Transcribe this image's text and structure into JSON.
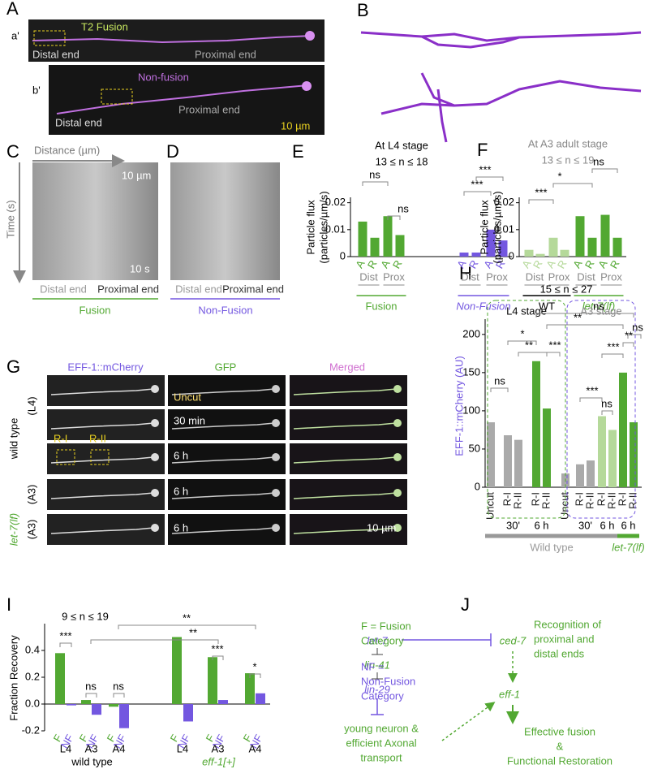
{
  "panel_labels": [
    "A",
    "B",
    "C",
    "D",
    "E",
    "F",
    "G",
    "H",
    "I",
    "J"
  ],
  "panel_a": {
    "sublabels": [
      "a'",
      "b'"
    ],
    "fusion_label": "T2 Fusion",
    "nonfusion_label": "Non-fusion",
    "ends": [
      "Distal end",
      "Proximal end"
    ],
    "scale": "10 µm"
  },
  "panel_c": {
    "x_axis": "Distance (µm)",
    "y_axis": "Time (s)",
    "scale_x": "10 µm",
    "scale_t": "10 s",
    "ends": [
      "Distal end",
      "Proximal end"
    ],
    "group": "Fusion"
  },
  "panel_d": {
    "ends": [
      "Distal end",
      "Proximal end"
    ],
    "group": "Non-Fusion"
  },
  "panel_g": {
    "columns": [
      "EFF-1::mCherry",
      "GFP",
      "Merged"
    ],
    "genotypes": [
      "wild type",
      "let-7(lf)"
    ],
    "stages": [
      "(L4)",
      "(A3)",
      "(A3)"
    ],
    "times": [
      "Uncut",
      "30 min",
      "6 h",
      "6 h",
      "6 h"
    ],
    "regions": [
      "R-I",
      "R-II"
    ],
    "scale": "10 µm"
  },
  "panel_j": {
    "let7": "let-7",
    "lin41": "lin-41",
    "lin29": "lin-29",
    "ced7": "ced-7",
    "eff1": "eff-1",
    "recognition": [
      "Recognition of",
      "proximal and",
      "distal ends"
    ],
    "young": [
      "young neuron &",
      "efficient Axonal",
      "transport"
    ],
    "outcome": [
      "Effective fusion",
      "&",
      "Functional Restoration"
    ]
  },
  "chart_data": [
    {
      "type": "bar",
      "title": "At L4 stage",
      "subtitle": "13 ≤ n ≤ 18",
      "y_label": [
        "Particle flux",
        "(particles/µm/s)"
      ],
      "categories": [
        "A",
        "R",
        "A",
        "R",
        "A",
        "R",
        "A",
        "R"
      ],
      "values": [
        0.013,
        0.007,
        0.015,
        0.008,
        0.0015,
        0.0015,
        0.01,
        0.006
      ],
      "colors": [
        "#52a832",
        "#52a832",
        "#52a832",
        "#52a832",
        "#7357e0",
        "#7357e0",
        "#7357e0",
        "#7357e0"
      ],
      "ylim": [
        0,
        0.022
      ],
      "yticks": [
        0,
        0.01,
        0.02
      ],
      "groups": [
        "Dist",
        "Prox",
        "Dist",
        "Prox"
      ],
      "sections": [
        "Fusion",
        "Non-Fusion"
      ],
      "section_colors": [
        "#52a832",
        "#7357e0"
      ],
      "annotations": [
        "ns",
        "ns",
        "***",
        "***"
      ]
    },
    {
      "type": "bar",
      "title": "At A3 adult stage",
      "subtitle": "13 ≤ n ≤ 19",
      "y_label": [
        "Particle flux",
        "(particles/µm/s)"
      ],
      "categories": [
        "A",
        "R",
        "A",
        "R",
        "A",
        "R",
        "A",
        "R"
      ],
      "values": [
        0.0025,
        0.001,
        0.007,
        0.0025,
        0.015,
        0.007,
        0.0155,
        0.007
      ],
      "colors": [
        "#b5d99a",
        "#b5d99a",
        "#b5d99a",
        "#b5d99a",
        "#52a832",
        "#52a832",
        "#52a832",
        "#52a832"
      ],
      "ylim": [
        0,
        0.022
      ],
      "yticks": [
        0,
        0.01,
        0.02
      ],
      "groups": [
        "Dist",
        "Prox",
        "Dist",
        "Prox"
      ],
      "sections": [
        "WT",
        "let-7(lf)"
      ],
      "section_colors": [
        "#000000",
        "#52a832"
      ],
      "annotations": [
        "***",
        "*",
        "ns"
      ]
    },
    {
      "type": "bar",
      "subtitle": "15 ≤ n ≤ 27",
      "y_label": [
        "EFF-1::mCherry (AU)"
      ],
      "y_label_color": "#7357e0",
      "categories": [
        "Uncut",
        "R-I",
        "R-II",
        "R-I",
        "R-II",
        "Uncut",
        "R-I",
        "R-II",
        "R-I",
        "R-II",
        "R-I",
        "R-II"
      ],
      "values": [
        85,
        68,
        62,
        165,
        103,
        18,
        30,
        35,
        93,
        75,
        150,
        85
      ],
      "colors": [
        "#aaaaaa",
        "#aaaaaa",
        "#aaaaaa",
        "#52a832",
        "#52a832",
        "#aaaaaa",
        "#aaaaaa",
        "#aaaaaa",
        "#b5d99a",
        "#b5d99a",
        "#52a832",
        "#52a832"
      ],
      "ylim": [
        0,
        220
      ],
      "yticks": [
        0,
        50,
        100,
        150,
        200
      ],
      "groups": [
        "30'",
        "6 h",
        "30'",
        "6 h",
        "6 h"
      ],
      "sections": [
        "Wild type",
        "let-7(lf)"
      ],
      "section_colors": [
        "#999999",
        "#52a832"
      ],
      "box_labels": [
        "L4 stage",
        "A3 stage"
      ],
      "box_colors": [
        "#52a832",
        "#7357e0"
      ],
      "annotations": [
        "ns",
        "**",
        "ns",
        "*",
        "**",
        "***",
        "**",
        "***",
        "ns",
        "***",
        "ns"
      ]
    },
    {
      "type": "bar",
      "subtitle": "9 ≤ n ≤ 19",
      "y_label": [
        "Fraction Recovery"
      ],
      "categories": [
        "F",
        "NF",
        "F",
        "NF",
        "F",
        "NF",
        "F",
        "NF",
        "F",
        "NF",
        "F",
        "NF"
      ],
      "values": [
        0.38,
        -0.01,
        0.03,
        -0.08,
        -0.02,
        -0.18,
        0.5,
        -0.13,
        0.35,
        0.03,
        0.23,
        0.08
      ],
      "colors": [
        "#52a832",
        "#7357e0",
        "#52a832",
        "#7357e0",
        "#52a832",
        "#7357e0",
        "#52a832",
        "#7357e0",
        "#52a832",
        "#7357e0",
        "#52a832",
        "#7357e0"
      ],
      "ylim": [
        -0.2,
        0.6
      ],
      "yticks": [
        -0.2,
        {
          "value": 0,
          "label": "0.0"
        },
        0.2,
        0.4
      ],
      "groups": [
        "L4",
        "A3",
        "A4",
        "L4",
        "A3",
        "A4"
      ],
      "sections": [
        "wild type",
        "eff-1[+]"
      ],
      "section_colors": [
        "#000000",
        "#52a832"
      ],
      "legend_notes": [
        [
          "F = Fusion",
          "Category"
        ],
        [
          "NF =",
          "Non-Fusion",
          "Category"
        ]
      ],
      "note_colors": [
        "#52a832",
        "#7357e0"
      ],
      "annotations": [
        "***",
        "ns",
        "ns",
        "**",
        "**",
        "***",
        "*"
      ]
    }
  ]
}
